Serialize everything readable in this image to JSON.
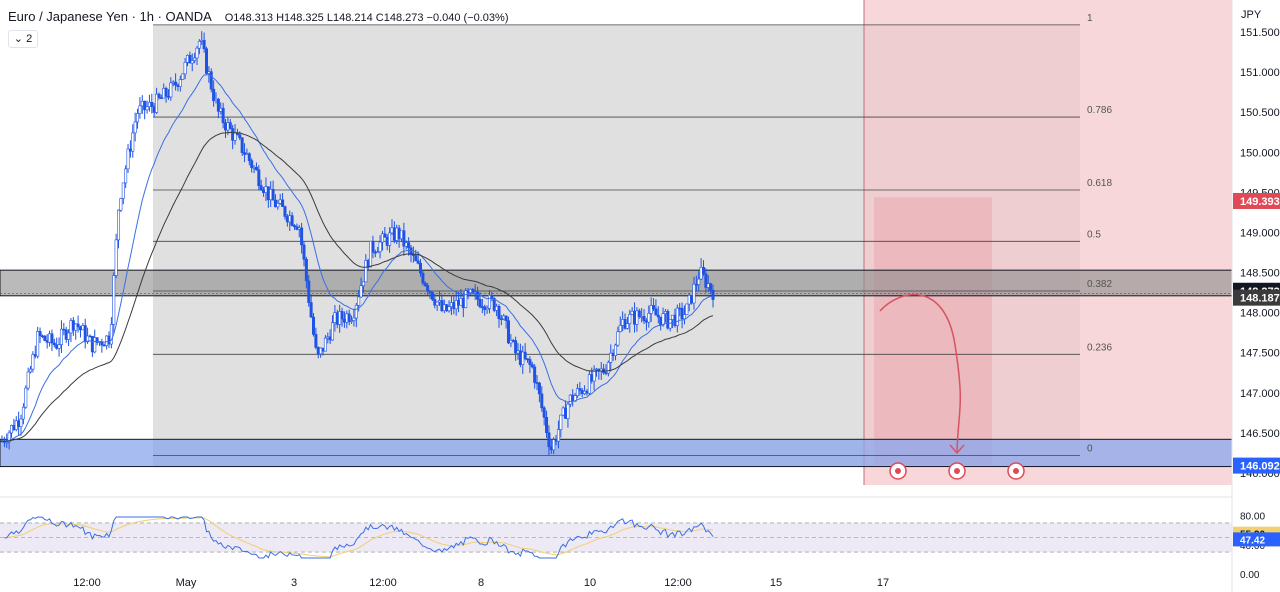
{
  "header": {
    "symbol": "Euro / Japanese Yen · 1h · OANDA",
    "ohlc": "O148.313 H148.325 L148.214 C148.273 −0.040 (−0.03%)",
    "indicators_badge": "⌄ 2"
  },
  "colors": {
    "candle": "#1e53e5",
    "ema_fast": "#3a6fe8",
    "ema_slow": "#3b3b3b",
    "fib_zone": "#d6d6d6",
    "supply_zone": "#8c8c8c",
    "demand_zone": "#8aa7ee",
    "short_zone": "#f4c6ca",
    "target_box": "#e9a8ae",
    "arrow": "#d9535f",
    "rsi_line": "#3a6fe8",
    "rsi_ma": "#f0d070"
  },
  "chart_data": {
    "type": "candlestick",
    "currency_label": "JPY",
    "ylim": [
      146.0,
      151.8
    ],
    "price_ticks": [
      "151.500",
      "151.000",
      "150.500",
      "150.000",
      "149.500",
      "149.000",
      "148.500",
      "148.000",
      "147.500",
      "147.000",
      "146.500",
      "146.000"
    ],
    "price_tags": [
      {
        "value": 149.393,
        "label": "149.393",
        "color": "#e04a57",
        "text": "#ffffff"
      },
      {
        "value": 148.273,
        "label": "148.273",
        "color": "#131722",
        "text": "#ffffff"
      },
      {
        "value": 148.187,
        "label": "148.187",
        "color": "#3b3b3b",
        "text": "#ffffff"
      },
      {
        "value": 146.092,
        "label": "146.092",
        "color": "#2962ff",
        "text": "#ffffff"
      }
    ],
    "fib_levels": [
      {
        "ratio": "1",
        "price": 151.59
      },
      {
        "ratio": "0.786",
        "price": 150.44
      },
      {
        "ratio": "0.618",
        "price": 149.53
      },
      {
        "ratio": "0.5",
        "price": 148.89
      },
      {
        "ratio": "0.382",
        "price": 148.27
      },
      {
        "ratio": "0.236",
        "price": 147.48
      },
      {
        "ratio": "0",
        "price": 146.22
      }
    ],
    "supply_zone": [
      148.21,
      148.53
    ],
    "demand_zone": [
      146.08,
      146.42
    ],
    "target_box": [
      146.1,
      149.44
    ],
    "x_labels": [
      "12:00",
      "May",
      "3",
      "12:00",
      "8",
      "10",
      "12:00",
      "15",
      "17"
    ],
    "price_path": [
      {
        "x": 0,
        "y": 146.4
      },
      {
        "x": 0.02,
        "y": 146.7
      },
      {
        "x": 0.04,
        "y": 147.7
      },
      {
        "x": 0.06,
        "y": 147.6
      },
      {
        "x": 0.08,
        "y": 147.9
      },
      {
        "x": 0.1,
        "y": 147.6
      },
      {
        "x": 0.12,
        "y": 147.7
      },
      {
        "x": 0.13,
        "y": 149.4
      },
      {
        "x": 0.15,
        "y": 150.5
      },
      {
        "x": 0.17,
        "y": 150.6
      },
      {
        "x": 0.19,
        "y": 150.8
      },
      {
        "x": 0.22,
        "y": 151.4
      },
      {
        "x": 0.24,
        "y": 150.5
      },
      {
        "x": 0.27,
        "y": 150.0
      },
      {
        "x": 0.3,
        "y": 149.4
      },
      {
        "x": 0.33,
        "y": 149.1
      },
      {
        "x": 0.35,
        "y": 147.4
      },
      {
        "x": 0.37,
        "y": 147.9
      },
      {
        "x": 0.39,
        "y": 148.0
      },
      {
        "x": 0.41,
        "y": 148.8
      },
      {
        "x": 0.44,
        "y": 149.0
      },
      {
        "x": 0.46,
        "y": 148.6
      },
      {
        "x": 0.49,
        "y": 148.0
      },
      {
        "x": 0.52,
        "y": 148.2
      },
      {
        "x": 0.55,
        "y": 148.1
      },
      {
        "x": 0.57,
        "y": 147.5
      },
      {
        "x": 0.59,
        "y": 147.3
      },
      {
        "x": 0.61,
        "y": 146.3
      },
      {
        "x": 0.63,
        "y": 146.9
      },
      {
        "x": 0.65,
        "y": 147.1
      },
      {
        "x": 0.67,
        "y": 147.3
      },
      {
        "x": 0.69,
        "y": 147.9
      },
      {
        "x": 0.72,
        "y": 148.0
      },
      {
        "x": 0.74,
        "y": 147.9
      },
      {
        "x": 0.76,
        "y": 148.0
      },
      {
        "x": 0.775,
        "y": 148.5
      },
      {
        "x": 0.79,
        "y": 148.27
      }
    ],
    "rsi": {
      "ticks": [
        "80.00",
        "40.00",
        "0.00"
      ],
      "tags": [
        {
          "label": "55.20",
          "color": "#f0d070",
          "text": "#131722"
        },
        {
          "label": "47.42",
          "color": "#2962ff",
          "text": "#ffffff"
        }
      ]
    }
  }
}
